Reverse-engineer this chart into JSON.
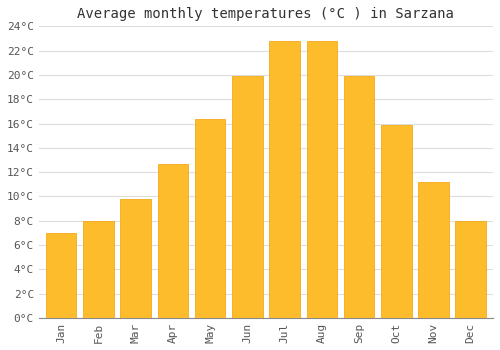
{
  "title": "Average monthly temperatures (°C ) in Sarzana",
  "months": [
    "Jan",
    "Feb",
    "Mar",
    "Apr",
    "May",
    "Jun",
    "Jul",
    "Aug",
    "Sep",
    "Oct",
    "Nov",
    "Dec"
  ],
  "values": [
    7.0,
    8.0,
    9.8,
    12.7,
    16.4,
    19.9,
    22.8,
    22.8,
    19.9,
    15.9,
    11.2,
    8.0
  ],
  "bar_color": "#FDBC2C",
  "bar_edge_color": "#F5A000",
  "background_color": "#FFFFFF",
  "grid_color": "#DDDDDD",
  "ylim": [
    0,
    24
  ],
  "ytick_step": 2,
  "title_fontsize": 10,
  "tick_fontsize": 8,
  "font_family": "monospace",
  "bar_width": 0.82
}
